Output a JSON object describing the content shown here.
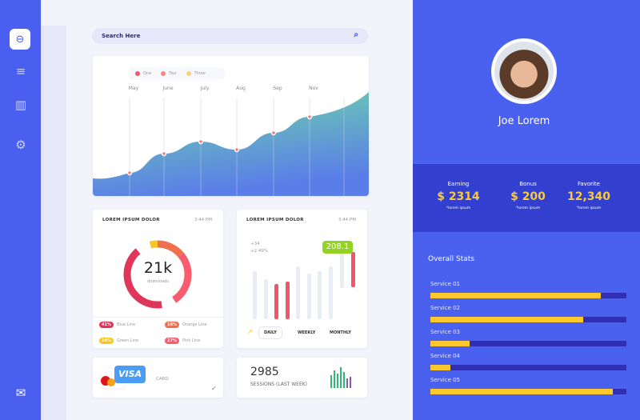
{
  "sidebar": {
    "items": [
      {
        "icon": "dashboard-icon"
      },
      {
        "icon": "filter-icon"
      },
      {
        "icon": "bar-chart-icon"
      },
      {
        "icon": "gear-icon"
      },
      {
        "icon": "mail-icon"
      }
    ]
  },
  "search": {
    "placeholder": "Search Here",
    "icon": "search-icon"
  },
  "area_chart": {
    "legend": [
      "One",
      "Two",
      "Three"
    ],
    "legend_colors": [
      "#ef5a6a",
      "#f28a7f",
      "#fbd27a"
    ],
    "months": [
      "May",
      "June",
      "July",
      "Aug",
      "Sep",
      "Nov"
    ],
    "values": [
      29,
      53,
      68,
      58,
      79,
      99
    ]
  },
  "donut_card": {
    "title": "LOREM IPSUM DOLOR",
    "time": "3:44 PM",
    "center_value": "21k",
    "center_label": "downloads",
    "legend": [
      {
        "pct": "41%",
        "label": "Blue Line",
        "color": "#e0365a"
      },
      {
        "pct": "18%",
        "label": "Orange Line",
        "color": "#f0704e"
      },
      {
        "pct": "14%",
        "label": "Green Line",
        "color": "#f9c623"
      },
      {
        "pct": "27%",
        "label": "Pink Line",
        "color": "#f75c6f"
      }
    ]
  },
  "bar_card": {
    "title": "LOREM IPSUM DOLOR",
    "time": "3:44 PM",
    "delta1": "+34",
    "delta2": "+2.49%",
    "badge": "208.1",
    "tabs": [
      "DAILY",
      "WEEKLY",
      "MONTHLY"
    ],
    "active_tab": "DAILY"
  },
  "card_card": {
    "brand": "VISA",
    "label": "CARD"
  },
  "sessions": {
    "value": "2985",
    "label": "SESSIONS (LAST WEEK)"
  },
  "profile": {
    "name": "Joe Lorem"
  },
  "stats": [
    {
      "label": "Earning",
      "value": "$ 2314",
      "note": "*lorem ipsum"
    },
    {
      "label": "Bonus",
      "value": "$ 200",
      "note": "*lorem ipsum"
    },
    {
      "label": "Favorite",
      "value": "12,340",
      "note": "*lorem ipsum"
    }
  ],
  "overall": {
    "title": "Overall Stats",
    "services": [
      {
        "label": "Service  01",
        "pct": 87
      },
      {
        "label": "Service 02",
        "pct": 78
      },
      {
        "label": "Service 03",
        "pct": 20
      },
      {
        "label": "Service 04",
        "pct": 10
      },
      {
        "label": "Service  05",
        "pct": 93
      }
    ]
  }
}
